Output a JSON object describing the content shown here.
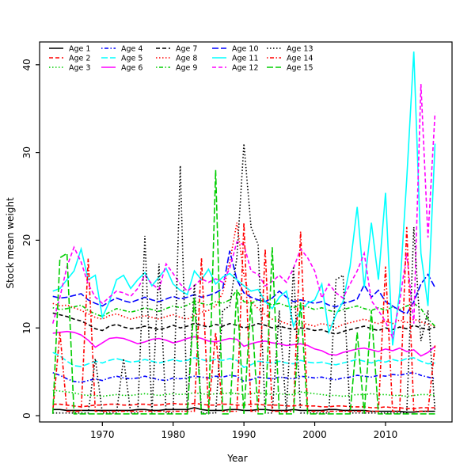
{
  "figure": {
    "background": "#ffffff",
    "box_color": "#000000"
  },
  "chart_data": {
    "type": "line",
    "title": "",
    "xlabel": "Year",
    "ylabel": "Stock mean weight",
    "grid": false,
    "legend_position": "top-left-inside",
    "legend_columns": 5,
    "x_ticks": [
      1970,
      1980,
      1990,
      2000,
      2010
    ],
    "y_ticks": [
      0,
      10,
      20,
      30,
      40
    ],
    "xlim": [
      1961.13,
      2019.4
    ],
    "ylim": [
      -0.72,
      42.6
    ],
    "x": [
      1963,
      1964,
      1965,
      1966,
      1967,
      1968,
      1969,
      1970,
      1971,
      1972,
      1973,
      1974,
      1975,
      1976,
      1977,
      1978,
      1979,
      1980,
      1981,
      1982,
      1983,
      1984,
      1985,
      1986,
      1987,
      1988,
      1989,
      1990,
      1991,
      1992,
      1993,
      1994,
      1995,
      1996,
      1997,
      1998,
      1999,
      2000,
      2001,
      2002,
      2003,
      2004,
      2005,
      2006,
      2007,
      2008,
      2009,
      2010,
      2011,
      2012,
      2013,
      2014,
      2015,
      2016,
      2017
    ],
    "series": [
      {
        "name": "Age 1",
        "color": "#000000",
        "linestyle": "solid",
        "values": [
          0.7,
          0.7,
          0.6,
          0.6,
          0.6,
          0.6,
          0.6,
          0.6,
          0.6,
          0.6,
          0.6,
          0.6,
          0.7,
          0.7,
          0.6,
          0.6,
          0.7,
          0.7,
          0.7,
          0.7,
          0.9,
          0.7,
          0.6,
          0.6,
          0.6,
          0.7,
          0.7,
          0.6,
          0.6,
          0.7,
          0.7,
          0.6,
          0.6,
          0.6,
          0.7,
          0.6,
          0.6,
          0.6,
          0.6,
          0.7,
          0.7,
          0.6,
          0.6,
          0.6,
          0.6,
          0.5,
          0.5,
          0.5,
          0.5,
          0.5,
          0.4,
          0.4,
          0.5,
          0.5,
          0.5
        ]
      },
      {
        "name": "Age 2",
        "color": "#FF0000",
        "linestyle": "dashed",
        "values": [
          1.3,
          1.3,
          1.2,
          1.1,
          1.0,
          1.1,
          1.2,
          1.2,
          1.3,
          1.3,
          1.2,
          1.2,
          1.3,
          1.3,
          1.2,
          1.2,
          1.3,
          1.4,
          1.3,
          1.3,
          1.4,
          1.3,
          1.2,
          1.2,
          1.3,
          1.3,
          1.2,
          1.2,
          1.3,
          1.3,
          1.2,
          1.2,
          1.2,
          1.1,
          1.1,
          1.2,
          1.1,
          1.1,
          1.0,
          1.0,
          1.1,
          1.1,
          1.0,
          1.0,
          1.0,
          0.9,
          0.9,
          1.0,
          0.9,
          0.9,
          0.8,
          0.8,
          0.9,
          0.9,
          0.9
        ]
      },
      {
        "name": "Age 3",
        "color": "#00CD00",
        "linestyle": "dotted",
        "values": [
          2.9,
          2.8,
          2.7,
          2.6,
          2.4,
          2.3,
          2.3,
          2.2,
          2.3,
          2.4,
          2.3,
          2.3,
          2.4,
          2.5,
          2.4,
          2.3,
          2.4,
          2.5,
          2.4,
          2.5,
          2.6,
          2.5,
          2.4,
          2.5,
          2.5,
          2.6,
          2.5,
          2.4,
          2.5,
          2.6,
          2.5,
          2.4,
          2.5,
          2.4,
          2.4,
          2.7,
          2.6,
          2.5,
          2.4,
          2.3,
          2.3,
          2.2,
          2.3,
          2.4,
          2.4,
          2.5,
          2.4,
          2.4,
          2.3,
          2.3,
          2.2,
          2.3,
          2.4,
          2.4,
          2.3
        ]
      },
      {
        "name": "Age 4",
        "color": "#0000FF",
        "linestyle": "dotdash",
        "values": [
          4.9,
          4.6,
          4.2,
          3.9,
          3.8,
          4.0,
          4.2,
          4.0,
          4.3,
          4.5,
          4.3,
          4.2,
          4.3,
          4.5,
          4.3,
          4.1,
          4.0,
          4.3,
          4.2,
          4.3,
          4.5,
          4.4,
          4.3,
          4.5,
          4.4,
          4.6,
          4.5,
          3.9,
          4.1,
          4.4,
          4.3,
          4.2,
          4.4,
          4.3,
          4.2,
          4.5,
          4.4,
          4.3,
          4.4,
          4.2,
          4.1,
          4.3,
          4.4,
          4.6,
          4.5,
          4.4,
          4.6,
          4.5,
          4.7,
          4.6,
          4.8,
          4.9,
          4.6,
          4.4,
          4.2
        ]
      },
      {
        "name": "Age 5",
        "color": "#00FFFF",
        "linestyle": "longdash",
        "values": [
          7.2,
          6.8,
          6.2,
          5.7,
          5.6,
          5.9,
          6.2,
          6.0,
          6.3,
          6.5,
          6.3,
          6.1,
          6.2,
          6.4,
          6.2,
          6.0,
          6.2,
          6.4,
          6.2,
          6.3,
          6.6,
          6.4,
          6.2,
          6.4,
          6.3,
          6.5,
          6.3,
          5.5,
          5.8,
          6.2,
          6.1,
          6.0,
          6.2,
          6.0,
          5.9,
          6.3,
          6.1,
          6.0,
          6.1,
          5.9,
          5.8,
          6.0,
          6.2,
          6.4,
          6.2,
          6.0,
          6.3,
          6.1,
          6.4,
          6.2,
          6.5,
          6.6,
          6.2,
          5.9,
          6.0
        ]
      },
      {
        "name": "Age 6",
        "color": "#FF00FF",
        "linestyle": "solid",
        "values": [
          9.4,
          9.5,
          9.6,
          9.5,
          9.2,
          8.6,
          7.8,
          8.3,
          8.8,
          8.9,
          8.8,
          8.5,
          8.2,
          8.4,
          8.7,
          8.8,
          8.6,
          8.3,
          8.5,
          8.8,
          9.0,
          8.8,
          8.5,
          8.4,
          8.6,
          8.8,
          8.7,
          7.9,
          8.2,
          8.4,
          8.5,
          8.3,
          8.2,
          8.0,
          8.1,
          8.2,
          8.0,
          7.6,
          7.4,
          7.0,
          6.9,
          7.2,
          7.4,
          7.6,
          7.7,
          7.5,
          7.3,
          7.6,
          7.4,
          7.7,
          7.3,
          7.5,
          6.8,
          7.2,
          7.9
        ]
      },
      {
        "name": "Age 7",
        "color": "#000000",
        "linestyle": "dashed",
        "values": [
          11.7,
          11.5,
          11.3,
          11.0,
          10.8,
          10.4,
          9.9,
          9.7,
          10.2,
          10.4,
          10.1,
          9.9,
          10.0,
          10.2,
          10.0,
          9.8,
          10.0,
          10.3,
          10.0,
          10.2,
          10.5,
          10.3,
          10.1,
          10.4,
          10.2,
          10.5,
          10.3,
          10.0,
          10.2,
          10.5,
          10.3,
          10.0,
          10.2,
          10.0,
          9.8,
          10.0,
          9.9,
          9.7,
          9.8,
          9.5,
          9.3,
          9.6,
          9.8,
          10.0,
          10.2,
          9.9,
          9.7,
          10.0,
          9.8,
          10.1,
          9.9,
          10.3,
          10.0,
          9.8,
          10.1
        ]
      },
      {
        "name": "Age 8",
        "color": "#FF0000",
        "linestyle": "dotted",
        "values": [
          12.8,
          12.5,
          12.6,
          12.3,
          12.0,
          11.6,
          11.2,
          11.0,
          11.4,
          11.6,
          11.3,
          11.0,
          11.2,
          11.4,
          11.2,
          11.0,
          11.3,
          11.5,
          11.2,
          11.0,
          11.4,
          11.8,
          12.0,
          12.5,
          14.0,
          17.5,
          22.0,
          16.0,
          13.0,
          12.2,
          11.5,
          11.0,
          10.8,
          10.5,
          10.3,
          10.6,
          10.4,
          10.2,
          10.5,
          10.3,
          10.0,
          10.4,
          10.6,
          10.8,
          11.0,
          10.7,
          10.5,
          10.8,
          10.5,
          10.9,
          10.6,
          11.0,
          10.7,
          10.4,
          10.2
        ]
      },
      {
        "name": "Age 9",
        "color": "#00CD00",
        "linestyle": "dotdash",
        "values": [
          12.3,
          12.1,
          12.2,
          12.4,
          12.6,
          12.0,
          11.6,
          11.3,
          11.8,
          12.2,
          12.0,
          11.8,
          12.0,
          12.3,
          12.1,
          11.9,
          12.2,
          12.5,
          12.3,
          12.6,
          13.0,
          12.8,
          12.6,
          13.0,
          12.8,
          13.2,
          14.3,
          13.0,
          12.8,
          13.2,
          13.0,
          12.6,
          12.8,
          12.5,
          12.3,
          12.6,
          12.4,
          12.1,
          12.3,
          12.0,
          11.8,
          12.1,
          12.3,
          12.5,
          12.2,
          12.0,
          12.3,
          12.0,
          12.4,
          12.1,
          12.5,
          12.8,
          12.2,
          11.0,
          10.2
        ]
      },
      {
        "name": "Age 10",
        "color": "#0000FF",
        "linestyle": "longdash",
        "values": [
          13.6,
          13.4,
          13.5,
          13.7,
          13.9,
          13.2,
          12.8,
          12.5,
          13.0,
          13.4,
          13.1,
          12.9,
          13.2,
          13.5,
          13.2,
          13.0,
          13.3,
          13.6,
          13.3,
          13.5,
          13.8,
          13.5,
          13.7,
          14.0,
          14.5,
          18.8,
          15.5,
          14.0,
          13.5,
          13.2,
          13.0,
          13.4,
          14.2,
          13.5,
          13.0,
          13.2,
          13.0,
          12.8,
          13.0,
          12.6,
          12.4,
          12.8,
          13.0,
          13.3,
          14.9,
          13.5,
          14.3,
          13.0,
          12.5,
          12.0,
          11.6,
          13.0,
          15.0,
          16.1,
          14.6
        ]
      },
      {
        "name": "Age 11",
        "color": "#00FFFF",
        "linestyle": "solid",
        "values": [
          14.2,
          14.5,
          15.5,
          16.5,
          19.0,
          15.5,
          16.0,
          11.2,
          13.0,
          15.5,
          16.0,
          14.5,
          15.5,
          16.3,
          14.8,
          15.8,
          16.8,
          15.0,
          14.3,
          13.8,
          16.5,
          15.5,
          16.7,
          15.0,
          15.8,
          16.2,
          15.5,
          14.8,
          14.2,
          14.4,
          13.0,
          12.2,
          13.5,
          14.2,
          10.2,
          12.0,
          12.8,
          13.2,
          15.0,
          9.5,
          11.5,
          13.0,
          17.0,
          23.8,
          14.6,
          22.0,
          15.5,
          25.4,
          8.0,
          14.0,
          27.0,
          41.5,
          18.5,
          12.5,
          31.0
        ]
      },
      {
        "name": "Age 12",
        "color": "#FF00FF",
        "linestyle": "dashed",
        "values": [
          10.5,
          13.5,
          17.0,
          19.2,
          17.5,
          15.0,
          13.5,
          12.8,
          13.5,
          14.2,
          14.0,
          13.6,
          14.5,
          16.0,
          15.0,
          14.4,
          17.3,
          16.2,
          15.0,
          14.2,
          14.8,
          15.6,
          15.2,
          15.6,
          15.2,
          16.8,
          19.8,
          19.5,
          16.5,
          16.1,
          14.8,
          15.3,
          16.0,
          15.2,
          16.8,
          19.0,
          18.0,
          16.5,
          13.4,
          15.0,
          14.0,
          13.4,
          15.0,
          16.5,
          18.5,
          13.1,
          12.0,
          10.7,
          8.9,
          13.0,
          18.5,
          10.5,
          37.8,
          20.3,
          34.5
        ]
      },
      {
        "name": "Age 13",
        "color": "#000000",
        "linestyle": "dotted",
        "values": [
          0.3,
          0.3,
          0.3,
          0.3,
          0.3,
          0.3,
          6.5,
          0.3,
          0.3,
          0.3,
          6.5,
          0.3,
          0.3,
          20.5,
          0.3,
          17.3,
          0.3,
          0.3,
          28.5,
          0.3,
          15.0,
          0.3,
          0.3,
          0.3,
          12.0,
          12.5,
          18.0,
          31.0,
          21.5,
          19.5,
          0.3,
          0.3,
          12.0,
          0.3,
          17.0,
          0.3,
          0.3,
          0.3,
          0.3,
          0.3,
          15.5,
          16.0,
          0.3,
          0.3,
          0.3,
          0.3,
          0.3,
          0.3,
          0.3,
          0.3,
          0.3,
          21.5,
          8.5,
          12.0,
          0.5
        ]
      },
      {
        "name": "Age 14",
        "color": "#FF0000",
        "linestyle": "dotdash",
        "values": [
          0.5,
          9.5,
          0.5,
          0.5,
          0.5,
          17.9,
          0.5,
          0.5,
          0.5,
          0.5,
          0.5,
          0.5,
          0.5,
          0.5,
          0.5,
          0.5,
          0.5,
          0.5,
          0.5,
          0.5,
          0.5,
          18.0,
          0.5,
          9.5,
          0.5,
          0.5,
          0.5,
          22.0,
          0.5,
          0.5,
          19.0,
          0.5,
          0.5,
          0.5,
          0.5,
          21.0,
          0.5,
          0.5,
          0.5,
          0.5,
          0.5,
          0.5,
          0.5,
          0.5,
          0.5,
          0.5,
          0.5,
          17.0,
          0.5,
          0.5,
          21.5,
          0.5,
          0.5,
          0.5,
          8.0
        ]
      },
      {
        "name": "Age 15",
        "color": "#00CD00",
        "linestyle": "longdash",
        "values": [
          0.2,
          18.0,
          18.5,
          0.2,
          0.2,
          0.2,
          0.2,
          0.2,
          0.2,
          0.2,
          0.2,
          0.2,
          0.2,
          0.2,
          0.2,
          0.2,
          0.2,
          0.2,
          0.2,
          0.2,
          13.5,
          0.2,
          0.2,
          28.0,
          0.2,
          0.2,
          14.3,
          0.2,
          13.0,
          0.2,
          0.2,
          19.2,
          0.2,
          0.2,
          0.2,
          13.0,
          0.2,
          0.2,
          0.2,
          0.2,
          0.2,
          0.2,
          0.2,
          9.5,
          0.2,
          12.0,
          0.2,
          0.2,
          0.2,
          0.2,
          0.2,
          0.2,
          0.2,
          0.2,
          0.2
        ]
      }
    ]
  }
}
